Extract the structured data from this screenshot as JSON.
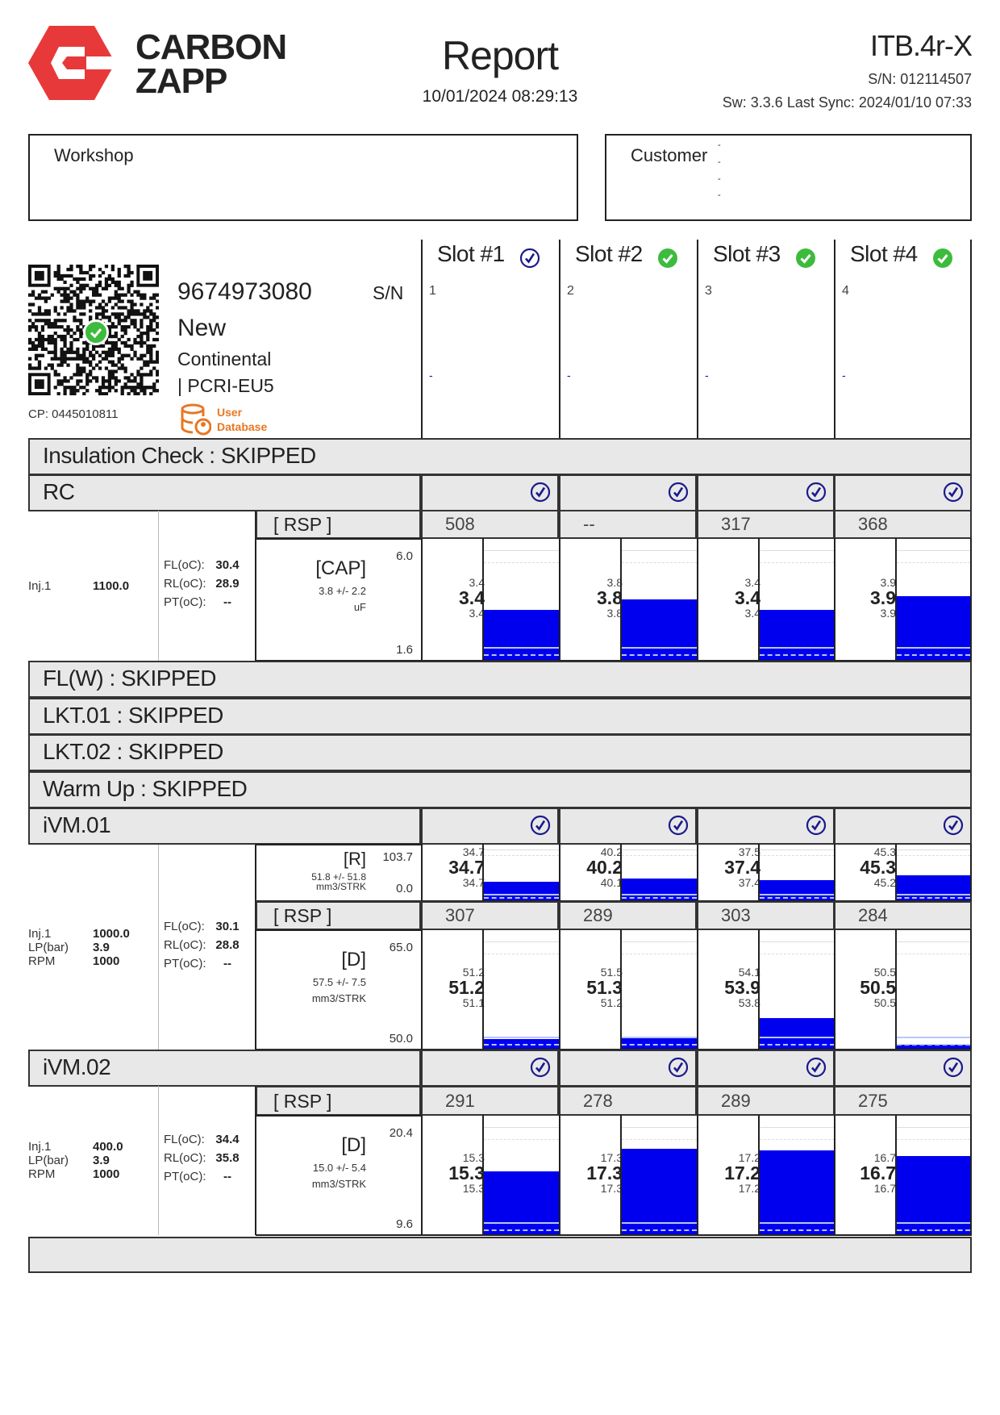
{
  "header": {
    "brand_line1": "CARBON",
    "brand_line2": "ZAPP",
    "title": "Report",
    "datetime": "10/01/2024 08:29:13",
    "device": "ITB.4r-X",
    "serial": "S/N: 012114507",
    "software": "Sw: 3.3.6 Last Sync: 2024/01/10 07:33"
  },
  "workshop": {
    "label": "Workshop"
  },
  "customer": {
    "label": "Customer",
    "lines": [
      "-",
      "-",
      "-",
      "-"
    ]
  },
  "injector": {
    "part_number": "9674973080",
    "sn_label": "S/N",
    "condition": "New",
    "brand": "Continental",
    "model": "| PCRI-EU5",
    "cp": "CP: 0445010811",
    "user_db_line1": "User",
    "user_db_line2": "Database"
  },
  "colors": {
    "brand_red": "#e8393a",
    "gauge_blue": "#0000ee",
    "check_green": "#3dbb3d",
    "check_navy": "#1a1a8c",
    "user_db_orange": "#e87722",
    "section_gray": "#e8e8e8"
  },
  "slots": [
    {
      "title": "Slot #1",
      "status": "outline-check-icon",
      "number": "1",
      "value": "-"
    },
    {
      "title": "Slot #2",
      "status": "green-check-icon",
      "number": "2",
      "value": "-"
    },
    {
      "title": "Slot #3",
      "status": "green-check-icon",
      "number": "3",
      "value": "-"
    },
    {
      "title": "Slot #4",
      "status": "green-check-icon",
      "number": "4",
      "value": "-"
    }
  ],
  "tests": {
    "insulation": "Insulation Check : SKIPPED",
    "rc": {
      "title": "RC",
      "slot_status": [
        "outline-check-icon",
        "outline-check-icon",
        "outline-check-icon",
        "outline-check-icon"
      ],
      "params": [
        {
          "label": "Inj.1",
          "value": "1100.0"
        }
      ],
      "temps": [
        {
          "label": "FL(oC):",
          "value": "30.4"
        },
        {
          "label": "RL(oC):",
          "value": "28.9"
        },
        {
          "label": "PT(oC):",
          "value": "--"
        }
      ],
      "rsp_label": "[ RSP ]",
      "rsp_values": [
        "508",
        "--",
        "317",
        "368"
      ],
      "cap": {
        "name": "[CAP]",
        "spec": "3.8 +/- 2.2",
        "unit": "uF",
        "max": "6.0",
        "min": "1.6",
        "readings": [
          {
            "top": "3.4",
            "main": "3.4",
            "bottom": "3.4"
          },
          {
            "top": "3.8",
            "main": "3.8",
            "bottom": "3.8"
          },
          {
            "top": "3.4",
            "main": "3.4",
            "bottom": "3.4"
          },
          {
            "top": "3.9",
            "main": "3.9",
            "bottom": "3.9"
          }
        ]
      }
    },
    "skipped": [
      "FL(W) : SKIPPED",
      "LKT.01 : SKIPPED",
      "LKT.02 : SKIPPED",
      "Warm Up : SKIPPED"
    ],
    "ivm01": {
      "title": "iVM.01",
      "slot_status": [
        "outline-check-icon",
        "outline-check-icon",
        "outline-check-icon",
        "outline-check-icon"
      ],
      "params": [
        {
          "label": "Inj.1",
          "value": "1000.0"
        },
        {
          "label": "LP(bar)",
          "value": "3.9"
        },
        {
          "label": "RPM",
          "value": "1000"
        }
      ],
      "temps": [
        {
          "label": "FL(oC):",
          "value": "30.1"
        },
        {
          "label": "RL(oC):",
          "value": "28.8"
        },
        {
          "label": "PT(oC):",
          "value": "--"
        }
      ],
      "rsp_label": "[ RSP ]",
      "rsp_values": [
        "307",
        "289",
        "303",
        "284"
      ],
      "r": {
        "name": "[R]",
        "spec": "51.8 +/- 51.8",
        "unit": "mm3/STRK",
        "max": "103.7",
        "min": "0.0",
        "readings": [
          {
            "top": "34.7",
            "main": "34.7",
            "bottom": "34.7"
          },
          {
            "top": "40.2",
            "main": "40.2",
            "bottom": "40.1"
          },
          {
            "top": "37.5",
            "main": "37.4",
            "bottom": "37.4"
          },
          {
            "top": "45.3",
            "main": "45.3",
            "bottom": "45.2"
          }
        ]
      },
      "d": {
        "name": "[D]",
        "spec": "57.5 +/- 7.5",
        "unit": "mm3/STRK",
        "max": "65.0",
        "min": "50.0",
        "readings": [
          {
            "top": "51.2",
            "main": "51.2",
            "bottom": "51.1"
          },
          {
            "top": "51.5",
            "main": "51.3",
            "bottom": "51.2"
          },
          {
            "top": "54.1",
            "main": "53.9",
            "bottom": "53.8"
          },
          {
            "top": "50.5",
            "main": "50.5",
            "bottom": "50.5"
          }
        ]
      }
    },
    "ivm02": {
      "title": "iVM.02",
      "slot_status": [
        "outline-check-icon",
        "outline-check-icon",
        "outline-check-icon",
        "outline-check-icon"
      ],
      "params": [
        {
          "label": "Inj.1",
          "value": "400.0"
        },
        {
          "label": "LP(bar)",
          "value": "3.9"
        },
        {
          "label": "RPM",
          "value": "1000"
        }
      ],
      "temps": [
        {
          "label": "FL(oC):",
          "value": "34.4"
        },
        {
          "label": "RL(oC):",
          "value": "35.8"
        },
        {
          "label": "PT(oC):",
          "value": "--"
        }
      ],
      "rsp_label": "[ RSP ]",
      "rsp_values": [
        "291",
        "278",
        "289",
        "275"
      ],
      "d": {
        "name": "[D]",
        "spec": "15.0 +/- 5.4",
        "unit": "mm3/STRK",
        "max": "20.4",
        "min": "9.6",
        "readings": [
          {
            "top": "15.3",
            "main": "15.3",
            "bottom": "15.3"
          },
          {
            "top": "17.3",
            "main": "17.3",
            "bottom": "17.3"
          },
          {
            "top": "17.2",
            "main": "17.2",
            "bottom": "17.2"
          },
          {
            "top": "16.7",
            "main": "16.7",
            "bottom": "16.7"
          }
        ]
      }
    }
  }
}
